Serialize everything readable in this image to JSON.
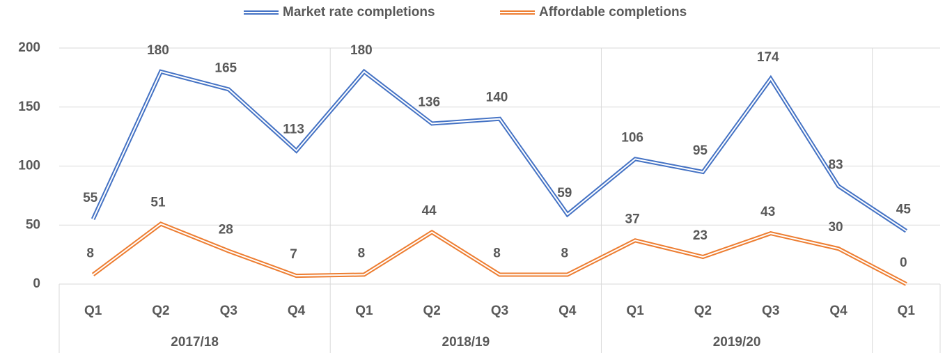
{
  "chart_data": {
    "type": "line",
    "categories": [
      "Q1",
      "Q2",
      "Q3",
      "Q4",
      "Q1",
      "Q2",
      "Q3",
      "Q4",
      "Q1",
      "Q2",
      "Q3",
      "Q4",
      "Q1"
    ],
    "category_groups": [
      "2017/18",
      "2017/18",
      "2017/18",
      "2017/18",
      "2018/19",
      "2018/19",
      "2018/19",
      "2018/19",
      "2019/20",
      "2019/20",
      "2019/20",
      "2019/20",
      null
    ],
    "series": [
      {
        "name": "Market rate completions",
        "color": "#4472c4",
        "values": [
          55,
          180,
          165,
          113,
          180,
          136,
          140,
          59,
          106,
          95,
          174,
          83,
          45
        ]
      },
      {
        "name": "Affordable completions",
        "color": "#ed7d31",
        "values": [
          8,
          51,
          28,
          7,
          8,
          44,
          8,
          8,
          37,
          23,
          43,
          30,
          0
        ]
      }
    ],
    "ylim": [
      0,
      200
    ],
    "yticks": [
      0,
      50,
      100,
      150,
      200
    ],
    "grid": true,
    "legend": "top"
  }
}
